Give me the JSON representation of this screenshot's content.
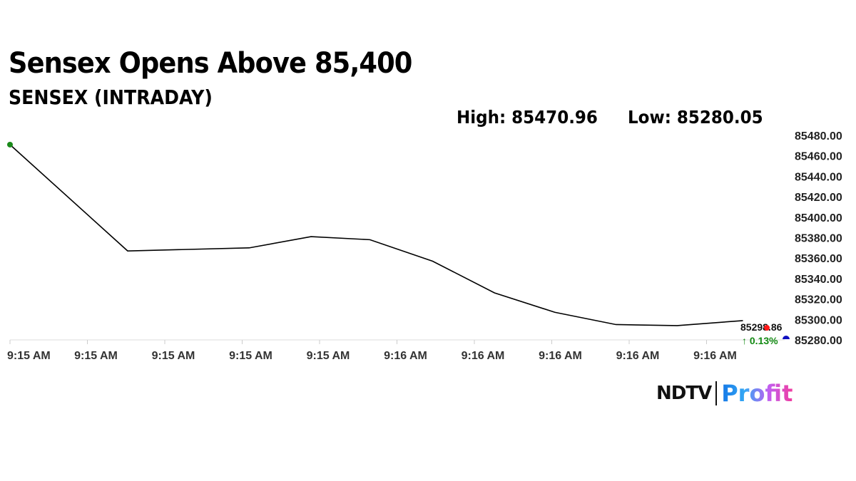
{
  "header": {
    "title": "Sensex Opens Above 85,400",
    "subtitle": "SENSEX (INTRADAY)",
    "high": "High: 85470.96",
    "low": "Low: 85280.05"
  },
  "chart_data": {
    "type": "line",
    "title": "SENSEX (INTRADAY)",
    "x_tick_labels": [
      "9:15 AM",
      "9:15 AM",
      "9:15 AM",
      "9:15 AM",
      "9:15 AM",
      "9:16 AM",
      "9:16 AM",
      "9:16 AM",
      "9:16 AM",
      "9:16 AM"
    ],
    "y_tick_labels": [
      "85480.00",
      "85460.00",
      "85440.00",
      "85420.00",
      "85400.00",
      "85380.00",
      "85360.00",
      "85340.00",
      "85320.00",
      "85300.00",
      "85280.00"
    ],
    "ylim": [
      85280,
      85480
    ],
    "y_axis_position": "right",
    "grid": false,
    "series": [
      {
        "name": "SENSEX",
        "color": "#000000",
        "x": [
          0,
          1.52,
          3.09,
          3.89,
          4.65,
          5.46,
          6.26,
          7.04,
          7.83,
          8.62,
          9.47
        ],
        "values": [
          85470.96,
          85367,
          85370,
          85381,
          85378,
          85357,
          85326,
          85307,
          85295,
          85294,
          85298.86
        ]
      }
    ],
    "last_value_label": "85298.86",
    "change_label": "↑ 0.13%",
    "colors": {
      "start_marker": "#1a8a1a",
      "last_marker": "#ff1a1a",
      "prev_close_marker": "#1010c0",
      "change": "#138a13"
    }
  },
  "logo": {
    "brand": "NDTV",
    "product": "Profit"
  }
}
